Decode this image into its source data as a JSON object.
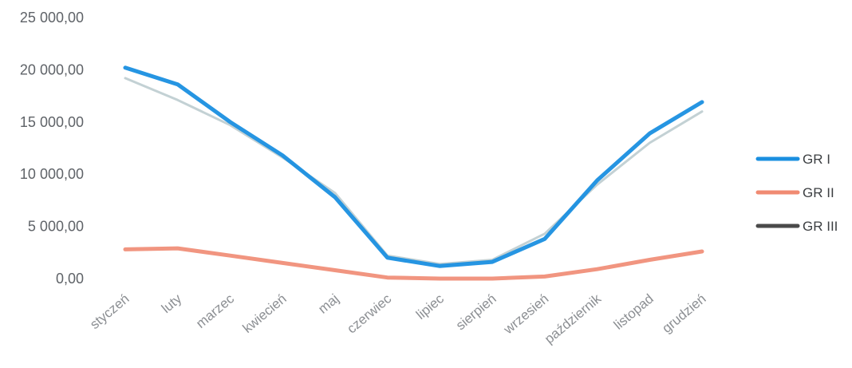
{
  "chart_data": {
    "type": "line",
    "categories": [
      "styczeń",
      "luty",
      "marzec",
      "kwiecień",
      "maj",
      "czerwiec",
      "lipiec",
      "sierpień",
      "wrzesień",
      "październik",
      "listopad",
      "grudzień"
    ],
    "y_ticks": [
      "25 000,00",
      "20 000,00",
      "15 000,00",
      "10 000,00",
      "5 000,00",
      "0,00"
    ],
    "ylim": [
      0,
      25000
    ],
    "grid": false,
    "legend_position": "right",
    "series": [
      {
        "name": "GR I",
        "color": "#1a8fe0",
        "values": [
          20200,
          18600,
          15000,
          11800,
          7800,
          2000,
          1200,
          1600,
          3800,
          9400,
          13900,
          16900
        ]
      },
      {
        "name": "GR II",
        "color": "#f08a72",
        "values": [
          2800,
          2900,
          2200,
          1500,
          800,
          100,
          0,
          0,
          200,
          900,
          1800,
          2600
        ]
      },
      {
        "name": "GR III",
        "color": "#4a4a4a",
        "values": [
          19200,
          17100,
          14700,
          11600,
          8200,
          2200,
          1400,
          1800,
          4300,
          9000,
          13000,
          16000
        ]
      }
    ]
  }
}
